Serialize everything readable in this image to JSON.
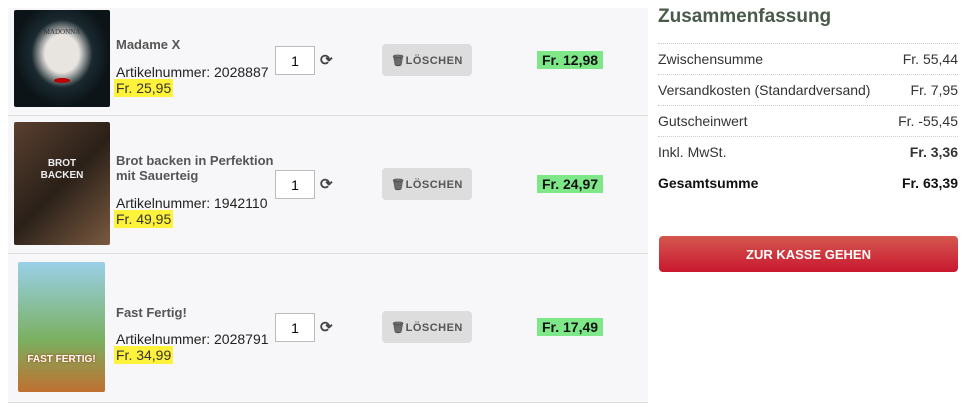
{
  "items": [
    {
      "title": "Madame X",
      "article": "Artikelnummer: 2028887",
      "price": "Fr. 25,95",
      "qty": "1",
      "delete_label": "LÖSCHEN",
      "total": "Fr. 12,98",
      "cover_text": "MADONNA"
    },
    {
      "title": "Brot backen in Perfektion mit Sauerteig",
      "article": "Artikelnummer: 1942110",
      "price": "Fr. 49,95",
      "qty": "1",
      "delete_label": "LÖSCHEN",
      "total": "Fr. 24,97",
      "cover_text": "BROT BACKEN"
    },
    {
      "title": "Fast Fertig!",
      "article": "Artikelnummer: 2028791",
      "price": "Fr. 34,99",
      "qty": "1",
      "delete_label": "LÖSCHEN",
      "total": "Fr. 17,49",
      "cover_text": "FAST FERTIG!"
    }
  ],
  "summary": {
    "title": "Zusammenfassung",
    "rows": [
      {
        "label": "Zwischensumme",
        "value": "Fr. 55,44"
      },
      {
        "label": "Versandkosten (Standardversand)",
        "value": "Fr. 7,95"
      },
      {
        "label": "Gutscheinwert",
        "value": "Fr. -55,45"
      },
      {
        "label": "Inkl. MwSt.",
        "value": "Fr. 3,36"
      },
      {
        "label": "Gesamtsumme",
        "value": "Fr. 63,39"
      }
    ],
    "checkout_label": "ZUR KASSE GEHEN"
  },
  "colors": {
    "price_highlight": "#fff23a",
    "total_highlight": "#7ee889",
    "checkout": "#c9182f"
  }
}
